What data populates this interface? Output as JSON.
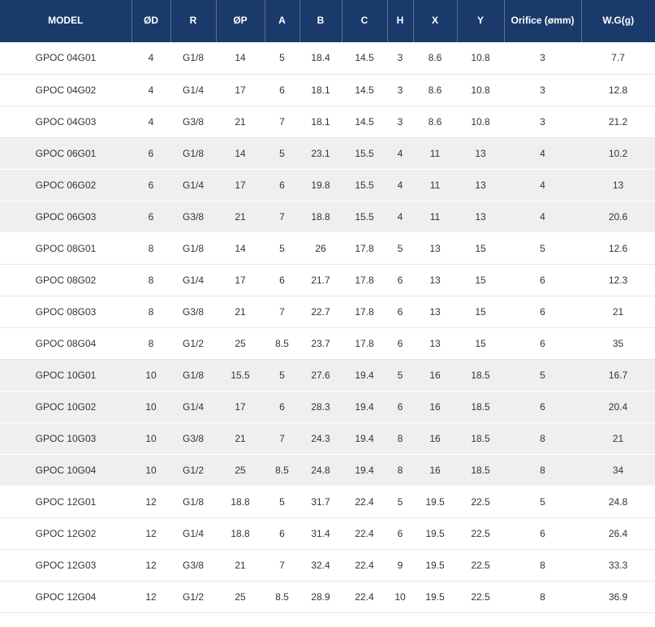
{
  "colors": {
    "header_bg": "#1a3a6b",
    "header_text": "#ffffff",
    "shaded_row_bg": "#efefef",
    "row_bg": "#ffffff",
    "row_text": "#333333"
  },
  "chart_data": {
    "type": "table",
    "columns": [
      "MODEL",
      "ØD",
      "R",
      "ØP",
      "A",
      "B",
      "C",
      "H",
      "X",
      "Y",
      "Orifice (ømm)",
      "W.G(g)"
    ],
    "rows": [
      [
        "GPOC 04G01",
        "4",
        "G1/8",
        "14",
        "5",
        "18.4",
        "14.5",
        "3",
        "8.6",
        "10.8",
        "3",
        "7.7"
      ],
      [
        "GPOC 04G02",
        "4",
        "G1/4",
        "17",
        "6",
        "18.1",
        "14.5",
        "3",
        "8.6",
        "10.8",
        "3",
        "12.8"
      ],
      [
        "GPOC 04G03",
        "4",
        "G3/8",
        "21",
        "7",
        "18.1",
        "14.5",
        "3",
        "8.6",
        "10.8",
        "3",
        "21.2"
      ],
      [
        "GPOC 06G01",
        "6",
        "G1/8",
        "14",
        "5",
        "23.1",
        "15.5",
        "4",
        "11",
        "13",
        "4",
        "10.2"
      ],
      [
        "GPOC 06G02",
        "6",
        "G1/4",
        "17",
        "6",
        "19.8",
        "15.5",
        "4",
        "11",
        "13",
        "4",
        "13"
      ],
      [
        "GPOC 06G03",
        "6",
        "G3/8",
        "21",
        "7",
        "18.8",
        "15.5",
        "4",
        "11",
        "13",
        "4",
        "20.6"
      ],
      [
        "GPOC 08G01",
        "8",
        "G1/8",
        "14",
        "5",
        "26",
        "17.8",
        "5",
        "13",
        "15",
        "5",
        "12.6"
      ],
      [
        "GPOC 08G02",
        "8",
        "G1/4",
        "17",
        "6",
        "21.7",
        "17.8",
        "6",
        "13",
        "15",
        "6",
        "12.3"
      ],
      [
        "GPOC 08G03",
        "8",
        "G3/8",
        "21",
        "7",
        "22.7",
        "17.8",
        "6",
        "13",
        "15",
        "6",
        "21"
      ],
      [
        "GPOC 08G04",
        "8",
        "G1/2",
        "25",
        "8.5",
        "23.7",
        "17.8",
        "6",
        "13",
        "15",
        "6",
        "35"
      ],
      [
        "GPOC 10G01",
        "10",
        "G1/8",
        "15.5",
        "5",
        "27.6",
        "19.4",
        "5",
        "16",
        "18.5",
        "5",
        "16.7"
      ],
      [
        "GPOC 10G02",
        "10",
        "G1/4",
        "17",
        "6",
        "28.3",
        "19.4",
        "6",
        "16",
        "18.5",
        "6",
        "20.4"
      ],
      [
        "GPOC 10G03",
        "10",
        "G3/8",
        "21",
        "7",
        "24.3",
        "19.4",
        "8",
        "16",
        "18.5",
        "8",
        "21"
      ],
      [
        "GPOC 10G04",
        "10",
        "G1/2",
        "25",
        "8.5",
        "24.8",
        "19.4",
        "8",
        "16",
        "18.5",
        "8",
        "34"
      ],
      [
        "GPOC 12G01",
        "12",
        "G1/8",
        "18.8",
        "5",
        "31.7",
        "22.4",
        "5",
        "19.5",
        "22.5",
        "5",
        "24.8"
      ],
      [
        "GPOC 12G02",
        "12",
        "G1/4",
        "18.8",
        "6",
        "31.4",
        "22.4",
        "6",
        "19.5",
        "22.5",
        "6",
        "26.4"
      ],
      [
        "GPOC 12G03",
        "12",
        "G3/8",
        "21",
        "7",
        "32.4",
        "22.4",
        "9",
        "19.5",
        "22.5",
        "8",
        "33.3"
      ],
      [
        "GPOC 12G04",
        "12",
        "G1/2",
        "25",
        "8.5",
        "28.9",
        "22.4",
        "10",
        "19.5",
        "22.5",
        "8",
        "36.9"
      ]
    ]
  }
}
